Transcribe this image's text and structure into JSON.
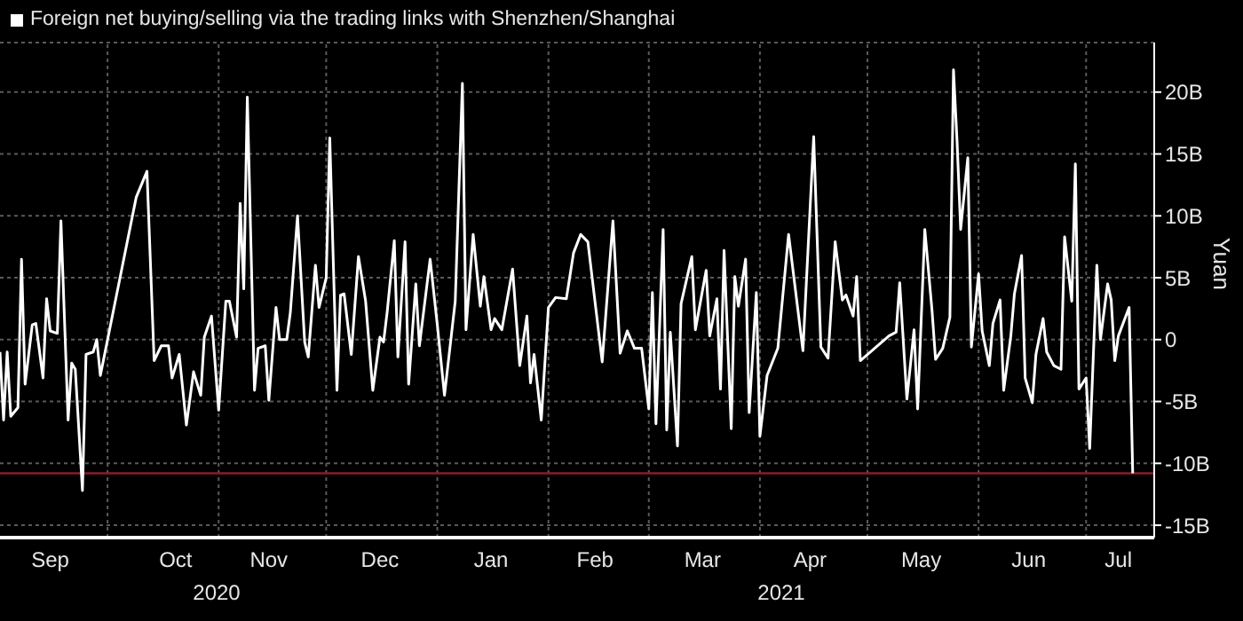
{
  "chart_data": {
    "type": "line",
    "title": "Foreign net buying/selling via the trading links with Shenzhen/Shanghai",
    "ylabel": "Yuan",
    "annotations": [
      "2020",
      "2021"
    ],
    "x": [
      "2020-09-01",
      "2020-09-02",
      "2020-09-03",
      "2020-09-04",
      "2020-09-06",
      "2020-09-07",
      "2020-09-08",
      "2020-09-10",
      "2020-09-11",
      "2020-09-13",
      "2020-09-14",
      "2020-09-15",
      "2020-09-17",
      "2020-09-18",
      "2020-09-20",
      "2020-09-21",
      "2020-09-22",
      "2020-09-24",
      "2020-09-25",
      "2020-09-27",
      "2020-09-28",
      "2020-09-29",
      "2020-10-09",
      "2020-10-12",
      "2020-10-14",
      "2020-10-16",
      "2020-10-18",
      "2020-10-19",
      "2020-10-21",
      "2020-10-23",
      "2020-10-25",
      "2020-10-27",
      "2020-10-28",
      "2020-10-30",
      "2020-11-01",
      "2020-11-03",
      "2020-11-04",
      "2020-11-06",
      "2020-11-07",
      "2020-11-08",
      "2020-11-09",
      "2020-11-11",
      "2020-11-12",
      "2020-11-14",
      "2020-11-15",
      "2020-11-17",
      "2020-11-18",
      "2020-11-20",
      "2020-11-21",
      "2020-11-23",
      "2020-11-25",
      "2020-11-26",
      "2020-11-28",
      "2020-11-29",
      "2020-12-01",
      "2020-12-02",
      "2020-12-04",
      "2020-12-05",
      "2020-12-06",
      "2020-12-08",
      "2020-12-10",
      "2020-12-12",
      "2020-12-14",
      "2020-12-16",
      "2020-12-17",
      "2020-12-18",
      "2020-12-20",
      "2020-12-21",
      "2020-12-23",
      "2020-12-24",
      "2020-12-26",
      "2020-12-27",
      "2020-12-30",
      "2021-01-01",
      "2021-01-03",
      "2021-01-06",
      "2021-01-08",
      "2021-01-09",
      "2021-01-11",
      "2021-01-13",
      "2021-01-14",
      "2021-01-16",
      "2021-01-17",
      "2021-01-19",
      "2021-01-22",
      "2021-01-24",
      "2021-01-26",
      "2021-01-27",
      "2021-01-28",
      "2021-01-30",
      "2021-02-01",
      "2021-02-03",
      "2021-02-06",
      "2021-02-08",
      "2021-02-10",
      "2021-02-12",
      "2021-02-16",
      "2021-02-19",
      "2021-02-21",
      "2021-02-23",
      "2021-02-25",
      "2021-02-27",
      "2021-03-01",
      "2021-03-02",
      "2021-03-03",
      "2021-03-05",
      "2021-03-06",
      "2021-03-07",
      "2021-03-09",
      "2021-03-10",
      "2021-03-13",
      "2021-03-14",
      "2021-03-17",
      "2021-03-18",
      "2021-03-20",
      "2021-03-21",
      "2021-03-22",
      "2021-03-24",
      "2021-03-25",
      "2021-03-26",
      "2021-03-28",
      "2021-03-29",
      "2021-03-31",
      "2021-04-01",
      "2021-04-03",
      "2021-04-06",
      "2021-04-09",
      "2021-04-13",
      "2021-04-16",
      "2021-04-18",
      "2021-04-20",
      "2021-04-22",
      "2021-04-24",
      "2021-04-25",
      "2021-04-27",
      "2021-04-28",
      "2021-04-29",
      "2021-05-07",
      "2021-05-09",
      "2021-05-10",
      "2021-05-12",
      "2021-05-14",
      "2021-05-15",
      "2021-05-17",
      "2021-05-19",
      "2021-05-20",
      "2021-05-22",
      "2021-05-24",
      "2021-05-25",
      "2021-05-26",
      "2021-05-27",
      "2021-05-29",
      "2021-05-30",
      "2021-06-01",
      "2021-06-02",
      "2021-06-04",
      "2021-06-05",
      "2021-06-07",
      "2021-06-08",
      "2021-06-10",
      "2021-06-11",
      "2021-06-13",
      "2021-06-14",
      "2021-06-16",
      "2021-06-17",
      "2021-06-19",
      "2021-06-20",
      "2021-06-22",
      "2021-06-24",
      "2021-06-25",
      "2021-06-27",
      "2021-06-28",
      "2021-06-29",
      "2021-07-01",
      "2021-07-02",
      "2021-07-04",
      "2021-07-05",
      "2021-07-07",
      "2021-07-08",
      "2021-07-09",
      "2021-07-10",
      "2021-07-13",
      "2021-07-14"
    ],
    "series": [
      {
        "color": "#ffffff",
        "values": [
          -1,
          -6.5,
          -1,
          -6.2,
          -5.5,
          6.5,
          -3.6,
          1.2,
          1.3,
          -3.1,
          3.3,
          0.7,
          0.5,
          9.6,
          -6.5,
          -1.9,
          -2.4,
          -12.2,
          -1.2,
          -1,
          0,
          -2.9,
          11.5,
          13.6,
          -1.7,
          -0.5,
          -0.5,
          -3.1,
          -1.2,
          -6.9,
          -2.6,
          -4.5,
          0.2,
          1.9,
          -5.7,
          3.1,
          3.1,
          0.2,
          11,
          4.1,
          19.6,
          -4.1,
          -0.7,
          -0.5,
          -4.9,
          2.6,
          0,
          0,
          2.2,
          10,
          -0.2,
          -1.4,
          6,
          2.6,
          5,
          16.3,
          -4.1,
          3.6,
          3.7,
          -1.2,
          6.7,
          3.1,
          -4.1,
          0.2,
          -0.2,
          2.2,
          8,
          -1.4,
          7.9,
          -3.6,
          4.5,
          -0.5,
          6.5,
          1.2,
          -4.5,
          3.1,
          20.7,
          0.8,
          8.5,
          2.7,
          5.1,
          0.8,
          1.7,
          0.8,
          5.7,
          -2.1,
          1.9,
          -3.5,
          -1.2,
          -6.5,
          2.6,
          3.4,
          3.3,
          7,
          8.5,
          7.9,
          -1.8,
          9.6,
          -1.1,
          0.7,
          -0.7,
          -0.7,
          -5.6,
          3.8,
          -6.8,
          8.9,
          -7.3,
          0.6,
          -8.6,
          2.9,
          6.7,
          0.8,
          5.6,
          0.3,
          3.3,
          -4,
          7.2,
          -7.2,
          5.1,
          2.7,
          6.5,
          -5.9,
          3.8,
          -7.8,
          -2.9,
          -0.7,
          8.5,
          -0.9,
          16.4,
          -0.6,
          -1.5,
          7.9,
          3.2,
          3.6,
          1.9,
          5.1,
          -1.7,
          0.3,
          0.6,
          4.6,
          -4.8,
          0.8,
          -5.6,
          8.9,
          2.4,
          -1.6,
          -0.7,
          1.8,
          21.8,
          16,
          8.9,
          14.7,
          -0.6,
          5.3,
          0.7,
          -2.1,
          1.3,
          3.2,
          -4.1,
          0.3,
          3.7,
          6.8,
          -3.1,
          -5.1,
          -1.2,
          1.7,
          -1,
          -2.1,
          -2.4,
          8.3,
          3.1,
          14.2,
          -4,
          -3.1,
          -8.8,
          6,
          0,
          4.5,
          3.2,
          -1.7,
          0.3,
          2.6,
          -10.8
        ]
      }
    ],
    "xlim": [
      "2020-09-01",
      "2021-07-20"
    ],
    "xticks": [
      {
        "value": "2020-09-15",
        "label": "Sep"
      },
      {
        "value": "2020-10-01",
        "label": null
      },
      {
        "value": "2020-10-20",
        "label": "Oct"
      },
      {
        "value": "2020-11-01",
        "label": null
      },
      {
        "value": "2020-11-15",
        "label": "Nov"
      },
      {
        "value": "2020-12-01",
        "label": null
      },
      {
        "value": "2020-12-16",
        "label": "Dec"
      },
      {
        "value": "2021-01-01",
        "label": null
      },
      {
        "value": "2021-01-16",
        "label": "Jan"
      },
      {
        "value": "2021-02-01",
        "label": null
      },
      {
        "value": "2021-02-14",
        "label": "Feb"
      },
      {
        "value": "2021-03-01",
        "label": null
      },
      {
        "value": "2021-03-16",
        "label": "Mar"
      },
      {
        "value": "2021-04-01",
        "label": null
      },
      {
        "value": "2021-04-15",
        "label": "Apr"
      },
      {
        "value": "2021-05-01",
        "label": null
      },
      {
        "value": "2021-05-16",
        "label": "May"
      },
      {
        "value": "2021-06-01",
        "label": null
      },
      {
        "value": "2021-06-15",
        "label": "Jun"
      },
      {
        "value": "2021-07-01",
        "label": null
      },
      {
        "value": "2021-07-10",
        "label": "Jul"
      }
    ],
    "ylim": [
      -16,
      24
    ],
    "yticks": [
      {
        "value": -15,
        "label": "-15B"
      },
      {
        "value": -10,
        "label": "-10B"
      },
      {
        "value": -5,
        "label": "-5B"
      },
      0,
      {
        "value": 5,
        "label": "5B"
      },
      {
        "value": 10,
        "label": "10B"
      },
      {
        "value": 15,
        "label": "15B"
      },
      {
        "value": 20,
        "label": "20B"
      }
    ],
    "ref_lines": [
      {
        "axis": "y",
        "value": -10.8,
        "color": "#8b1d2c"
      }
    ],
    "grid": true
  }
}
